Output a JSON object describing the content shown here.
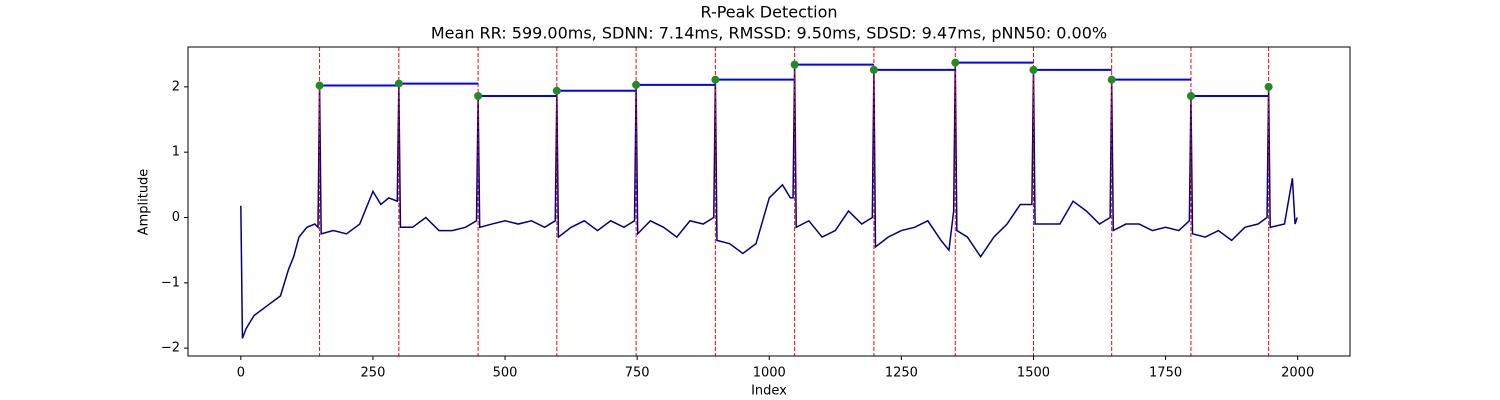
{
  "chart_data": {
    "type": "line",
    "title": "R-Peak Detection",
    "subtitle": "Mean RR: 599.00ms, SDNN: 7.14ms, RMSSD: 9.50ms, SDSD: 9.47ms, pNN50: 0.00%",
    "x_label": "Index",
    "y_label": "Amplitude",
    "xlim": [
      -100,
      2099
    ],
    "ylim": [
      -2.12,
      2.61
    ],
    "xticks": [
      0,
      250,
      500,
      750,
      1000,
      1250,
      1500,
      1750,
      2000
    ],
    "yticks": [
      {
        "value": -2,
        "label": "−2"
      },
      {
        "value": -1,
        "label": "−1"
      },
      0,
      1,
      2
    ],
    "signal": {
      "color": "#00008b",
      "x": [
        0,
        3,
        10,
        25,
        50,
        75,
        90,
        100,
        110,
        125,
        140,
        146,
        149,
        152,
        175,
        200,
        225,
        250,
        265,
        280,
        296,
        299,
        302,
        325,
        350,
        375,
        400,
        425,
        446,
        449,
        452,
        475,
        500,
        525,
        550,
        575,
        595,
        598,
        601,
        625,
        650,
        675,
        700,
        725,
        745,
        748,
        751,
        775,
        800,
        825,
        850,
        875,
        895,
        898,
        901,
        925,
        950,
        975,
        1000,
        1025,
        1040,
        1045,
        1048,
        1051,
        1075,
        1100,
        1125,
        1150,
        1175,
        1195,
        1198,
        1201,
        1225,
        1250,
        1275,
        1300,
        1325,
        1340,
        1349,
        1352,
        1355,
        1375,
        1400,
        1425,
        1450,
        1475,
        1497,
        1500,
        1503,
        1525,
        1550,
        1575,
        1600,
        1625,
        1645,
        1648,
        1651,
        1675,
        1700,
        1725,
        1750,
        1775,
        1795,
        1798,
        1801,
        1825,
        1850,
        1875,
        1900,
        1925,
        1942,
        1945,
        1948,
        1975,
        1990,
        1995,
        1999
      ],
      "values": [
        0.18,
        -1.85,
        -1.7,
        -1.5,
        -1.35,
        -1.2,
        -0.8,
        -0.6,
        -0.3,
        -0.15,
        -0.1,
        -0.15,
        2.02,
        -0.25,
        -0.2,
        -0.25,
        -0.1,
        0.4,
        0.2,
        0.3,
        0.25,
        2.05,
        -0.15,
        -0.15,
        0.0,
        -0.2,
        -0.2,
        -0.15,
        -0.05,
        1.86,
        -0.15,
        -0.1,
        -0.05,
        -0.1,
        -0.05,
        -0.15,
        -0.05,
        1.94,
        -0.3,
        -0.15,
        -0.05,
        -0.2,
        -0.05,
        -0.15,
        -0.05,
        2.03,
        -0.25,
        -0.05,
        -0.15,
        -0.3,
        -0.05,
        -0.1,
        0.0,
        2.11,
        -0.35,
        -0.4,
        -0.55,
        -0.4,
        0.3,
        0.5,
        0.3,
        0.3,
        2.34,
        -0.15,
        -0.05,
        -0.3,
        -0.2,
        0.1,
        -0.1,
        0.0,
        2.26,
        -0.45,
        -0.3,
        -0.2,
        -0.15,
        -0.05,
        -0.35,
        -0.5,
        0.1,
        2.37,
        -0.2,
        -0.3,
        -0.6,
        -0.3,
        -0.1,
        0.2,
        0.2,
        2.26,
        -0.1,
        -0.1,
        -0.1,
        0.25,
        0.1,
        -0.1,
        0.0,
        2.11,
        -0.2,
        -0.1,
        -0.1,
        -0.2,
        -0.15,
        -0.2,
        -0.05,
        1.86,
        -0.25,
        -0.3,
        -0.2,
        -0.35,
        -0.15,
        -0.1,
        0.0,
        2.0,
        -0.15,
        -0.1,
        0.6,
        -0.1,
        0.0
      ]
    },
    "peaks": {
      "color": "#228b22",
      "line_color": "#ff0000",
      "segment_color": "#0000ff",
      "x": [
        149,
        299,
        449,
        598,
        748,
        898,
        1048,
        1198,
        1352,
        1500,
        1648,
        1798,
        1945
      ],
      "values": [
        2.02,
        2.05,
        1.86,
        1.94,
        2.03,
        2.11,
        2.34,
        2.26,
        2.37,
        2.26,
        2.11,
        1.86,
        2.0
      ]
    }
  }
}
